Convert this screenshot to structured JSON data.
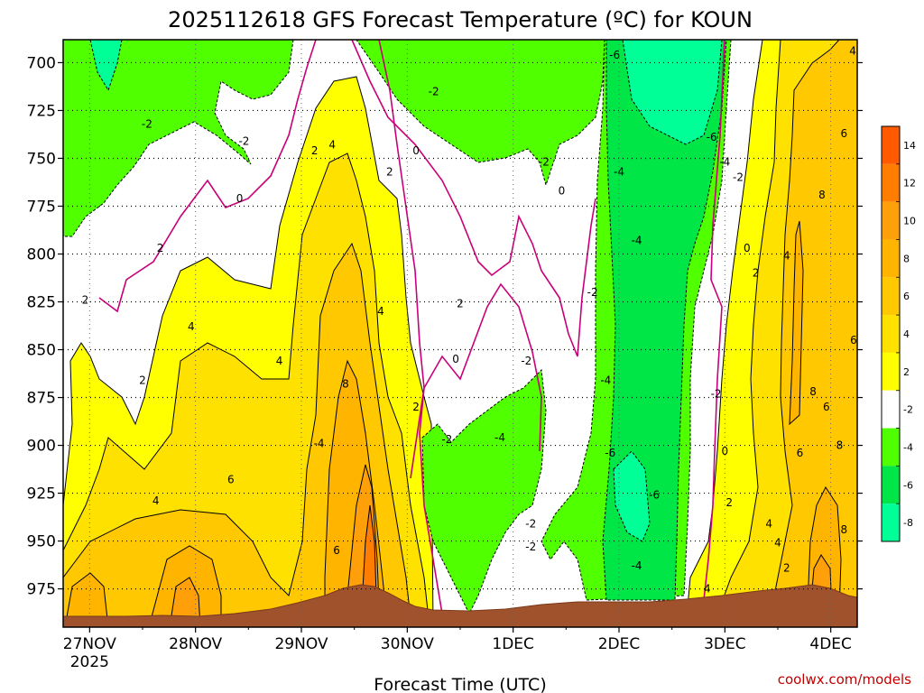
{
  "chart_data": {
    "type": "heatmap",
    "title": "2025112618 GFS Forecast Temperature (ºC) for KOUN",
    "xlabel": "Forecast Time (UTC)",
    "ylabel": "",
    "x_ticks": [
      {
        "label": "27NOV",
        "sub": "2025",
        "hours": 6
      },
      {
        "label": "28NOV",
        "hours": 30
      },
      {
        "label": "29NOV",
        "hours": 54
      },
      {
        "label": "30NOV",
        "hours": 78
      },
      {
        "label": "1DEC",
        "hours": 102
      },
      {
        "label": "2DEC",
        "hours": 126
      },
      {
        "label": "3DEC",
        "hours": 150
      },
      {
        "label": "4DEC",
        "hours": 174
      }
    ],
    "x_range_hours": [
      0,
      180
    ],
    "y_ticks": [
      700,
      725,
      750,
      775,
      800,
      825,
      850,
      875,
      900,
      925,
      950,
      975
    ],
    "y_range_hPa": [
      688,
      995
    ],
    "grid": true,
    "colorbar": {
      "placement": "right",
      "labels": [
        "14",
        "12",
        "10",
        "8",
        "6",
        "4",
        "2",
        "-2",
        "-4",
        "-6",
        "-8"
      ],
      "colors": [
        "#ff5a00",
        "#ff7d00",
        "#ff9f0a",
        "#ffb400",
        "#ffc800",
        "#ffe100",
        "#ffff00",
        "#ffffff",
        "#50ff00",
        "#00e646",
        "#00ff96"
      ]
    },
    "color_scale": {
      "warm": {
        "2": "#ffff00",
        "4": "#ffe100",
        "6": "#ffc800",
        "8": "#ffb400",
        "10": "#ff9f0a",
        "12": "#ff7d00",
        "14": "#ff5a00"
      },
      "neutral": "#ffffff",
      "cold": {
        "-2": "#50ff00",
        "-4": "#00e646",
        "-6": "#00ff96"
      },
      "terrain": "#a0522d"
    },
    "series_note": "Temperature (ºC) at pressure levels (hPa) vs forecast time",
    "contour_labels": [
      {
        "text": "2",
        "hours": 5,
        "p": 824
      },
      {
        "text": "2",
        "hours": 22,
        "p": 797
      },
      {
        "text": "2",
        "hours": 18,
        "p": 866
      },
      {
        "text": "4",
        "hours": 29,
        "p": 838
      },
      {
        "text": "4",
        "hours": 49,
        "p": 856
      },
      {
        "text": "4",
        "hours": 21,
        "p": 929
      },
      {
        "text": "6",
        "hours": 38,
        "p": 918
      },
      {
        "text": "6",
        "hours": 62,
        "p": 955
      },
      {
        "text": "8",
        "hours": 64,
        "p": 868
      },
      {
        "text": "4",
        "hours": 72,
        "p": 830
      },
      {
        "text": "2",
        "hours": 57,
        "p": 746
      },
      {
        "text": "4",
        "hours": 61,
        "p": 743
      },
      {
        "text": "2",
        "hours": 74,
        "p": 757
      },
      {
        "text": "0",
        "hours": 40,
        "p": 771
      },
      {
        "text": "-2",
        "hours": 19,
        "p": 732
      },
      {
        "text": "-2",
        "hours": 41,
        "p": 741
      },
      {
        "text": "0",
        "hours": 80,
        "p": 746
      },
      {
        "text": "-2",
        "hours": 84,
        "p": 715
      },
      {
        "text": "2",
        "hours": 80,
        "p": 880
      },
      {
        "text": "2",
        "hours": 90,
        "p": 826
      },
      {
        "text": "0",
        "hours": 89,
        "p": 855
      },
      {
        "text": "-2",
        "hours": 87,
        "p": 897
      },
      {
        "text": "-4",
        "hours": 58,
        "p": 899
      },
      {
        "text": "-4",
        "hours": 99,
        "p": 896
      },
      {
        "text": "-2",
        "hours": 105,
        "p": 856
      },
      {
        "text": "-2",
        "hours": 106,
        "p": 941
      },
      {
        "text": "-2",
        "hours": 106,
        "p": 953
      },
      {
        "text": "0",
        "hours": 113,
        "p": 767
      },
      {
        "text": "-2",
        "hours": 109,
        "p": 752
      },
      {
        "text": "-6",
        "hours": 125,
        "p": 696
      },
      {
        "text": "-6",
        "hours": 147,
        "p": 739
      },
      {
        "text": "-4",
        "hours": 150,
        "p": 752
      },
      {
        "text": "-2",
        "hours": 153,
        "p": 760
      },
      {
        "text": "-4",
        "hours": 126,
        "p": 757
      },
      {
        "text": "-4",
        "hours": 130,
        "p": 793
      },
      {
        "text": "-2",
        "hours": 120,
        "p": 820
      },
      {
        "text": "-4",
        "hours": 123,
        "p": 866
      },
      {
        "text": "-6",
        "hours": 124,
        "p": 904
      },
      {
        "text": "-6",
        "hours": 134,
        "p": 926
      },
      {
        "text": "-4",
        "hours": 130,
        "p": 963
      },
      {
        "text": "-2",
        "hours": 148,
        "p": 873
      },
      {
        "text": "4",
        "hours": 146,
        "p": 975
      },
      {
        "text": "0",
        "hours": 150,
        "p": 903
      },
      {
        "text": "2",
        "hours": 151,
        "p": 930
      },
      {
        "text": "4",
        "hours": 160,
        "p": 941
      },
      {
        "text": "4",
        "hours": 162,
        "p": 951
      },
      {
        "text": "2",
        "hours": 164,
        "p": 964
      },
      {
        "text": "0",
        "hours": 155,
        "p": 797
      },
      {
        "text": "2",
        "hours": 157,
        "p": 810
      },
      {
        "text": "4",
        "hours": 164,
        "p": 801
      },
      {
        "text": "4",
        "hours": 179,
        "p": 694
      },
      {
        "text": "6",
        "hours": 177,
        "p": 737
      },
      {
        "text": "8",
        "hours": 172,
        "p": 769
      },
      {
        "text": "8",
        "hours": 170,
        "p": 872
      },
      {
        "text": "6",
        "hours": 173,
        "p": 880
      },
      {
        "text": "6",
        "hours": 167,
        "p": 904
      },
      {
        "text": "8",
        "hours": 176,
        "p": 900
      },
      {
        "text": "8",
        "hours": 177,
        "p": 944
      },
      {
        "text": "6",
        "hours": 184,
        "p": 845
      }
    ]
  },
  "credit": "coolwx.com/models"
}
